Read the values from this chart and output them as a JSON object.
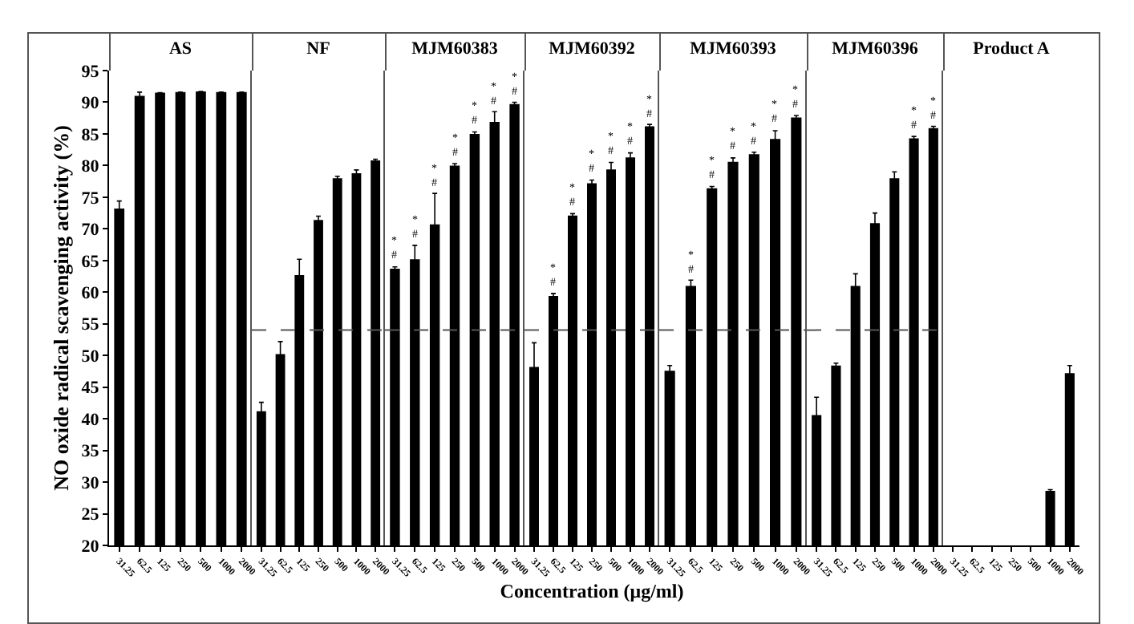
{
  "chart_data": [
    {
      "type": "bar",
      "title": "AS",
      "ylabel": "NO oxide radical scavenging activity (%)",
      "categories": [
        "31.25",
        "62.5",
        "125",
        "250",
        "500",
        "1000",
        "2000"
      ],
      "values": [
        73.2,
        91.0,
        91.5,
        91.6,
        91.7,
        91.6,
        91.6
      ],
      "errors": [
        1.2,
        0.6,
        null,
        null,
        null,
        null,
        null
      ],
      "color": "#000000",
      "ylim": [
        20,
        95
      ],
      "yticks": [
        20,
        25,
        30,
        35,
        40,
        45,
        50,
        55,
        60,
        65,
        70,
        75,
        80,
        85,
        90,
        95
      ]
    },
    {
      "type": "bar",
      "title": "NF",
      "categories": [
        "31.25",
        "62.5",
        "125",
        "250",
        "500",
        "1000",
        "2000"
      ],
      "values": [
        41.2,
        50.2,
        62.7,
        71.4,
        78.0,
        78.8,
        80.8
      ],
      "errors": [
        1.4,
        2.0,
        2.5,
        0.6,
        0.3,
        0.5,
        0.2
      ],
      "color": "#000000",
      "ylim": [
        20,
        95
      ],
      "yticks": [
        20,
        25,
        30,
        35,
        40,
        45,
        50,
        55,
        60,
        65,
        70,
        75,
        80,
        85,
        90,
        95
      ],
      "tick_labels": "x",
      "ref_lines": [
        {
          "axis": "y",
          "value": 54,
          "line_style": "dashed"
        }
      ]
    },
    {
      "type": "bar",
      "title": "MJM60383",
      "categories": [
        "31.25",
        "62.5",
        "125",
        "250",
        "500",
        "1000",
        "2000"
      ],
      "values": [
        63.7,
        65.2,
        70.7,
        80.0,
        85.0,
        86.9,
        89.7
      ],
      "errors": [
        0.3,
        2.2,
        4.9,
        0.3,
        0.3,
        1.6,
        0.3
      ],
      "color": "#000000",
      "ylim": [
        20,
        95
      ],
      "yticks": [
        20,
        25,
        30,
        35,
        40,
        45,
        50,
        55,
        60,
        65,
        70,
        75,
        80,
        85,
        90,
        95
      ],
      "tick_labels": "x",
      "ref_lines": [
        {
          "axis": "y",
          "value": 54,
          "line_style": "dashed"
        }
      ],
      "annotations": [
        {
          "text": "*\n#",
          "x": "31.25",
          "y": 64.0
        },
        {
          "text": "*\n#",
          "x": "62.5",
          "y": 67.4
        },
        {
          "text": "*\n#",
          "x": "125",
          "y": 75.6
        },
        {
          "text": "*\n#",
          "x": "250",
          "y": 80.3
        },
        {
          "text": "*\n#",
          "x": "500",
          "y": 85.3
        },
        {
          "text": "*\n#",
          "x": "1000",
          "y": 88.5
        },
        {
          "text": "*\n#",
          "x": "2000",
          "y": 90.0
        }
      ]
    },
    {
      "type": "bar",
      "title": "MJM60392",
      "xlabel": "Concentration (μg/ml)",
      "categories": [
        "31.25",
        "62.5",
        "125",
        "250",
        "500",
        "1000",
        "2000"
      ],
      "values": [
        48.2,
        59.4,
        72.1,
        77.2,
        79.4,
        81.3,
        86.2
      ],
      "errors": [
        3.8,
        0.4,
        0.3,
        0.5,
        1.1,
        0.7,
        0.3
      ],
      "color": "#000000",
      "ylim": [
        20,
        95
      ],
      "yticks": [
        20,
        25,
        30,
        35,
        40,
        45,
        50,
        55,
        60,
        65,
        70,
        75,
        80,
        85,
        90,
        95
      ],
      "tick_labels": "x",
      "ref_lines": [
        {
          "axis": "y",
          "value": 54,
          "line_style": "dashed"
        }
      ],
      "annotations": [
        {
          "text": "*\n#",
          "x": "62.5",
          "y": 59.8
        },
        {
          "text": "*\n#",
          "x": "125",
          "y": 72.4
        },
        {
          "text": "*\n#",
          "x": "250",
          "y": 77.7
        },
        {
          "text": "*\n#",
          "x": "500",
          "y": 80.5
        },
        {
          "text": "*\n#",
          "x": "1000",
          "y": 82.0
        },
        {
          "text": "*\n#",
          "x": "2000",
          "y": 86.5
        }
      ]
    },
    {
      "type": "bar",
      "title": "MJM60393",
      "categories": [
        "31.25",
        "62.5",
        "125",
        "250",
        "500",
        "1000",
        "2000"
      ],
      "values": [
        47.6,
        61.0,
        76.4,
        80.6,
        81.8,
        84.2,
        87.6
      ],
      "errors": [
        0.8,
        0.9,
        0.3,
        0.6,
        0.3,
        1.3,
        0.3
      ],
      "color": "#000000",
      "ylim": [
        20,
        95
      ],
      "yticks": [
        20,
        25,
        30,
        35,
        40,
        45,
        50,
        55,
        60,
        65,
        70,
        75,
        80,
        85,
        90,
        95
      ],
      "tick_labels": "x",
      "ref_lines": [
        {
          "axis": "y",
          "value": 54,
          "line_style": "dashed"
        }
      ],
      "annotations": [
        {
          "text": "*\n#",
          "x": "62.5",
          "y": 61.9
        },
        {
          "text": "*\n#",
          "x": "125",
          "y": 76.7
        },
        {
          "text": "*\n#",
          "x": "250",
          "y": 81.2
        },
        {
          "text": "*\n#",
          "x": "500",
          "y": 82.1
        },
        {
          "text": "*\n#",
          "x": "1000",
          "y": 85.5
        },
        {
          "text": "*\n#",
          "x": "2000",
          "y": 87.9
        }
      ]
    },
    {
      "type": "bar",
      "title": "MJM60396",
      "categories": [
        "31.25",
        "62.5",
        "125",
        "250",
        "500",
        "1000",
        "2000"
      ],
      "values": [
        40.6,
        48.4,
        61.0,
        70.9,
        78.0,
        84.3,
        85.9
      ],
      "errors": [
        2.8,
        0.4,
        1.9,
        1.6,
        1.0,
        0.3,
        0.3
      ],
      "color": "#000000",
      "ylim": [
        20,
        95
      ],
      "yticks": [
        20,
        25,
        30,
        35,
        40,
        45,
        50,
        55,
        60,
        65,
        70,
        75,
        80,
        85,
        90,
        95
      ],
      "tick_labels": "x",
      "ref_lines": [
        {
          "axis": "y",
          "value": 54,
          "line_style": "dashed"
        }
      ],
      "annotations": [
        {
          "text": "*\n#",
          "x": "1000",
          "y": 84.6
        },
        {
          "text": "*\n#",
          "x": "2000",
          "y": 86.2
        }
      ]
    },
    {
      "type": "bar",
      "title": "Product A",
      "categories": [
        "31.25",
        "62.5",
        "125",
        "250",
        "500",
        "1000",
        "2000"
      ],
      "values": [
        null,
        null,
        null,
        null,
        null,
        28.6,
        47.2
      ],
      "errors": [
        null,
        null,
        null,
        null,
        null,
        0.2,
        1.2
      ],
      "color": "#000000",
      "ylim": [
        20,
        95
      ],
      "yticks": [
        20,
        25,
        30,
        35,
        40,
        45,
        50,
        55,
        60,
        65,
        70,
        75,
        80,
        85,
        90,
        95
      ],
      "tick_labels": "x"
    }
  ]
}
